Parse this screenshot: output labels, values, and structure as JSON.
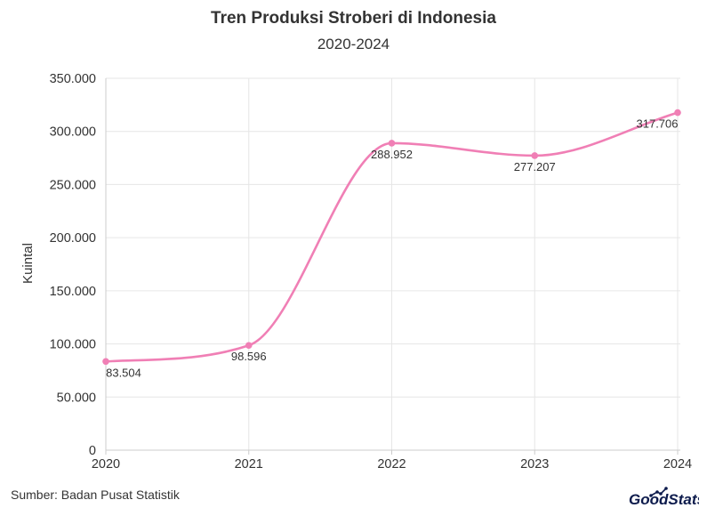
{
  "header": {
    "title": "Tren Produksi Stroberi di Indonesia",
    "subtitle": "2020-2024"
  },
  "footer": {
    "source": "Sumber: Badan Pusat Statistik",
    "logo_text": "GoodStats"
  },
  "colors": {
    "line": "#f07fb5",
    "grid": "#e6e6e6",
    "axis": "#cccccc",
    "text": "#333333",
    "logo": "#0d1b4c"
  },
  "chart_data": {
    "type": "line",
    "title": "Tren Produksi Stroberi di Indonesia",
    "subtitle": "2020-2024",
    "xlabel": "",
    "ylabel": "Kuintal",
    "categories": [
      "2020",
      "2021",
      "2022",
      "2023",
      "2024"
    ],
    "series": [
      {
        "values": [
          83504,
          98596,
          288952,
          277207,
          317706
        ],
        "labels": [
          "83.504",
          "98.596",
          "288.952",
          "277.207",
          "317.706"
        ]
      }
    ],
    "ylim": [
      0,
      350000
    ],
    "yticks": [
      0,
      50000,
      100000,
      150000,
      200000,
      250000,
      300000,
      350000
    ],
    "ytick_labels": [
      "0",
      "50.000",
      "100.000",
      "150.000",
      "200.000",
      "250.000",
      "300.000",
      "350.000"
    ],
    "grid": true,
    "smooth": true,
    "legend": "none"
  }
}
